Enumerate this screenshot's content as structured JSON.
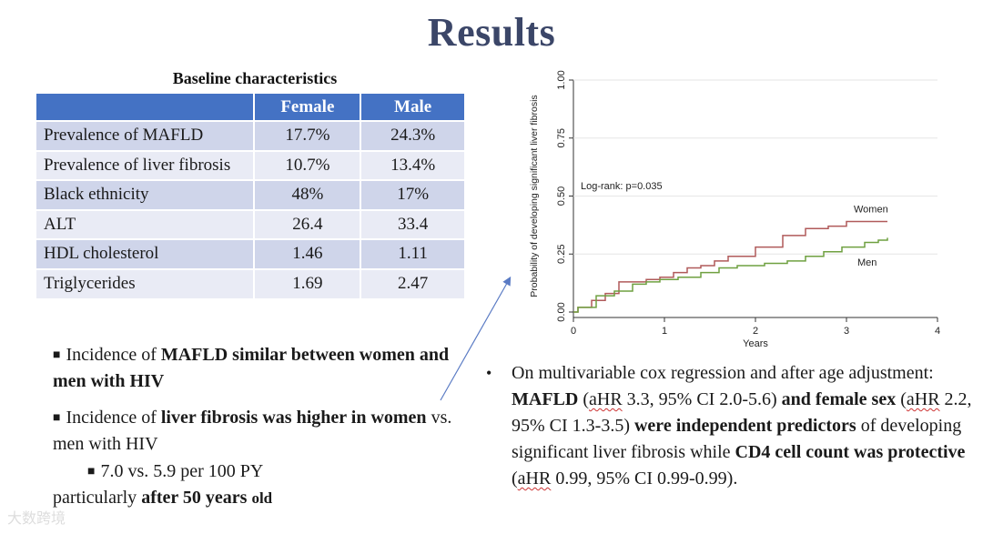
{
  "title": "Results",
  "table": {
    "caption": "Baseline characteristics",
    "headers": [
      "",
      "Female",
      "Male"
    ],
    "rows": [
      [
        "Prevalence of MAFLD",
        "17.7%",
        "24.3%"
      ],
      [
        "Prevalence of liver fibrosis",
        "10.7%",
        "13.4%"
      ],
      [
        "Black ethnicity",
        "48%",
        "17%"
      ],
      [
        "ALT",
        "26.4",
        "33.4"
      ],
      [
        "HDL cholesterol",
        "1.46",
        "1.11"
      ],
      [
        "Triglycerides",
        "1.69",
        "2.47"
      ]
    ]
  },
  "left_bullets": {
    "b1_a": "Incidence of ",
    "b1_b": "MAFLD similar between women and men with HIV",
    "b2_a": "Incidence of ",
    "b2_b": "liver fibrosis was higher in women",
    "b2_c": " vs. men with HIV",
    "b3": "7.0 vs. 5.9 per 100 PY",
    "b4_a": "particularly ",
    "b4_b": "after 50 years",
    "b4_c": "old"
  },
  "right_bullet": {
    "p1": "On multivariable cox regression and after age adjustment:  ",
    "p2": "MAFLD",
    "p3": " (",
    "p4": "aHR",
    "p5": " 3.3, 95% CI 2.0-5.6) ",
    "p6": "and female sex",
    "p7": " (",
    "p8": "aHR",
    "p9": " 2.2, 95% CI 1.3-3.5) ",
    "p10": "were independent predictors",
    "p11": " of developing significant liver fibrosis while ",
    "p12": "CD4 cell count was protective",
    "p13": " (",
    "p14": "aHR",
    "p15": " 0.99, 95% CI 0.99-0.99)."
  },
  "watermark": "大数跨境",
  "chart_data": {
    "type": "line",
    "xlabel": "Years",
    "ylabel": "Probability of developing significant liver fibrosis",
    "xlim": [
      0,
      4
    ],
    "ylim": [
      0,
      1
    ],
    "xticks": [
      "0",
      "1",
      "2",
      "3",
      "4"
    ],
    "yticks": [
      "0.00",
      "0.25",
      "0.50",
      "0.75",
      "1.00"
    ],
    "annotation": "Log-rank: p=0.035",
    "grid": "horizontal",
    "series": [
      {
        "name": "Women",
        "color": "#b05a5a",
        "step": [
          [
            0,
            0
          ],
          [
            0.05,
            0.02
          ],
          [
            0.2,
            0.05
          ],
          [
            0.35,
            0.08
          ],
          [
            0.5,
            0.13
          ],
          [
            0.8,
            0.14
          ],
          [
            0.95,
            0.15
          ],
          [
            1.1,
            0.17
          ],
          [
            1.25,
            0.19
          ],
          [
            1.4,
            0.2
          ],
          [
            1.55,
            0.22
          ],
          [
            1.7,
            0.24
          ],
          [
            2.0,
            0.28
          ],
          [
            2.3,
            0.33
          ],
          [
            2.55,
            0.36
          ],
          [
            2.8,
            0.37
          ],
          [
            3.0,
            0.39
          ],
          [
            3.45,
            0.39
          ]
        ]
      },
      {
        "name": "Men",
        "color": "#6fa040",
        "step": [
          [
            0,
            0
          ],
          [
            0.05,
            0.02
          ],
          [
            0.25,
            0.07
          ],
          [
            0.45,
            0.09
          ],
          [
            0.65,
            0.12
          ],
          [
            0.8,
            0.13
          ],
          [
            0.95,
            0.14
          ],
          [
            1.15,
            0.15
          ],
          [
            1.4,
            0.17
          ],
          [
            1.6,
            0.19
          ],
          [
            1.8,
            0.2
          ],
          [
            2.1,
            0.21
          ],
          [
            2.35,
            0.22
          ],
          [
            2.55,
            0.24
          ],
          [
            2.75,
            0.26
          ],
          [
            2.95,
            0.28
          ],
          [
            3.2,
            0.3
          ],
          [
            3.35,
            0.31
          ],
          [
            3.45,
            0.32
          ]
        ]
      }
    ]
  }
}
